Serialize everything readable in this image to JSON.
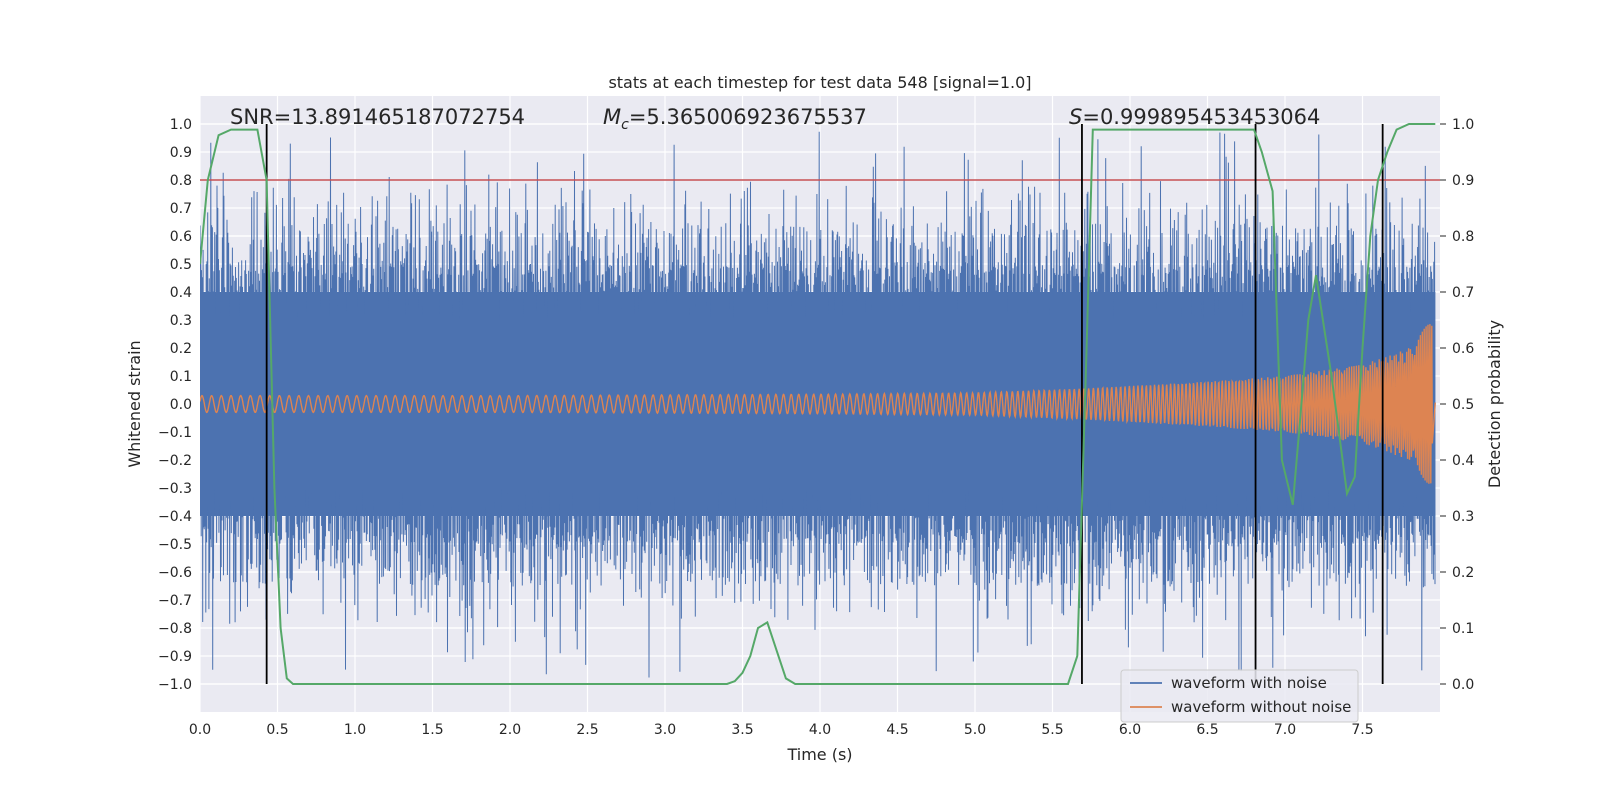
{
  "chart_data": {
    "type": "line",
    "title": "stats at each timestep for test data 548 [signal=1.0]",
    "xlabel": "Time (s)",
    "ylabel_left": "Whitened strain",
    "ylabel_right": "Detection probability",
    "xlim": [
      0.0,
      8.0
    ],
    "ylim_left": [
      -1.1,
      1.1
    ],
    "ylim_right": [
      -0.05,
      1.05
    ],
    "x_ticks": [
      "0.0",
      "0.5",
      "1.0",
      "1.5",
      "2.0",
      "2.5",
      "3.0",
      "3.5",
      "4.0",
      "4.5",
      "5.0",
      "5.5",
      "6.0",
      "6.5",
      "7.0",
      "7.5"
    ],
    "y_ticks_left": [
      "1.0",
      "0.9",
      "0.8",
      "0.7",
      "0.6",
      "0.5",
      "0.4",
      "0.3",
      "0.2",
      "0.1",
      "0.0",
      "−0.1",
      "−0.2",
      "−0.3",
      "−0.4",
      "−0.5",
      "−0.6",
      "−0.7",
      "−0.8",
      "−0.9",
      "−1.0"
    ],
    "y_ticks_right": [
      "1.0",
      "0.9",
      "0.8",
      "0.7",
      "0.6",
      "0.5",
      "0.4",
      "0.3",
      "0.2",
      "0.1",
      "0.0"
    ],
    "annotations": {
      "snr": "SNR=13.891465187072754",
      "mc_symbol": "M",
      "mc_sub": "c",
      "mc_value": "=5.365006923675537",
      "s_symbol": "S",
      "s_value": "=0.999895453453064"
    },
    "threshold": {
      "value_right_axis": 0.9,
      "color": "#c44e52"
    },
    "vertical_lines_x": [
      0.43,
      5.69,
      6.81,
      7.63
    ],
    "series": [
      {
        "name": "waveform with noise",
        "color": "#4c72b0",
        "noise_envelope_typical": 0.4,
        "peak_abs": 0.98
      },
      {
        "name": "waveform without noise",
        "color": "#dd8452",
        "envelope": {
          "x": [
            0.0,
            2.0,
            4.0,
            5.0,
            5.7,
            6.5,
            7.0,
            7.5,
            7.8,
            7.95
          ],
          "amp": [
            0.03,
            0.03,
            0.035,
            0.04,
            0.055,
            0.08,
            0.1,
            0.14,
            0.2,
            0.31
          ]
        }
      },
      {
        "name": "detection probability",
        "color": "#55a868",
        "axis": "right",
        "x": [
          0.0,
          0.05,
          0.12,
          0.2,
          0.3,
          0.37,
          0.43,
          0.48,
          0.52,
          0.56,
          0.6,
          0.8,
          1.5,
          2.5,
          3.0,
          3.4,
          3.45,
          3.5,
          3.55,
          3.6,
          3.66,
          3.72,
          3.78,
          3.84,
          3.9,
          4.5,
          5.0,
          5.5,
          5.6,
          5.66,
          5.72,
          5.76,
          6.0,
          6.5,
          6.8,
          6.85,
          6.92,
          6.98,
          7.05,
          7.1,
          7.15,
          7.2,
          7.3,
          7.4,
          7.45,
          7.5,
          7.55,
          7.6,
          7.66,
          7.72,
          7.8,
          7.97
        ],
        "y": [
          0.75,
          0.9,
          0.98,
          0.99,
          0.99,
          0.99,
          0.9,
          0.35,
          0.1,
          0.01,
          0.0,
          0.0,
          0.0,
          0.0,
          0.0,
          0.0,
          0.005,
          0.02,
          0.05,
          0.1,
          0.11,
          0.06,
          0.01,
          0.0,
          0.0,
          0.0,
          0.0,
          0.0,
          0.0,
          0.05,
          0.6,
          0.99,
          0.99,
          0.99,
          0.99,
          0.95,
          0.88,
          0.4,
          0.32,
          0.48,
          0.65,
          0.73,
          0.55,
          0.34,
          0.37,
          0.6,
          0.8,
          0.9,
          0.95,
          0.99,
          1.0,
          1.0
        ]
      }
    ],
    "legend": {
      "position": "lower-right",
      "entries": [
        "waveform with noise",
        "waveform without noise"
      ]
    }
  }
}
